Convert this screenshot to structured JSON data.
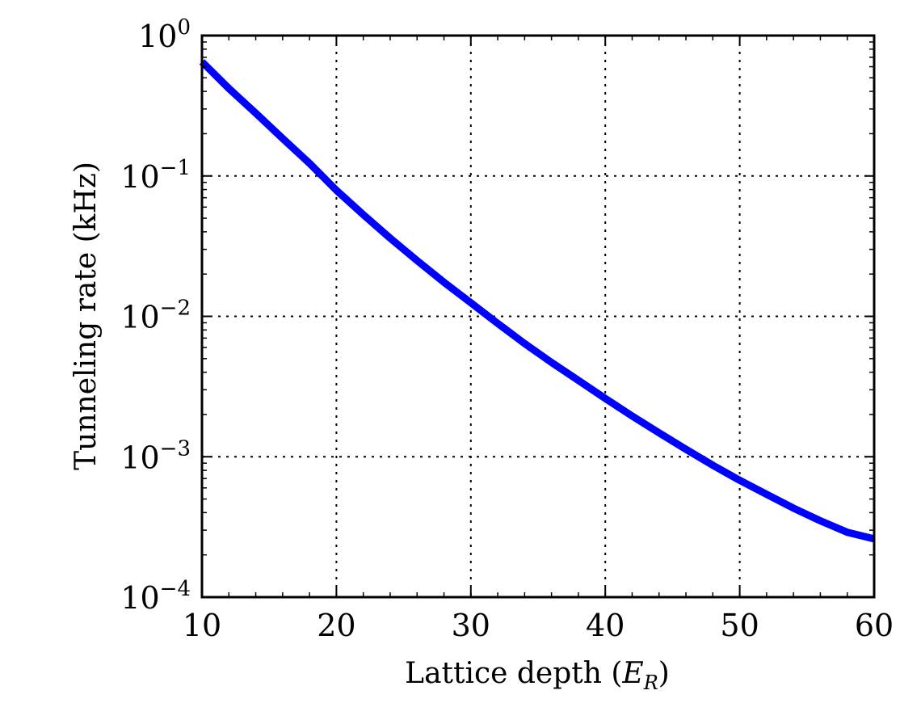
{
  "chart_data": {
    "type": "line",
    "title": "",
    "xlabel": {
      "prefix": "Lattice depth (",
      "symbol": "E",
      "subscript": "R",
      "suffix": ")"
    },
    "ylabel": "Tunneling rate (kHz)",
    "xlim": [
      10,
      60
    ],
    "ylim": [
      0.0001,
      1
    ],
    "yscale": "log",
    "grid": true,
    "x_ticks": [
      10,
      20,
      30,
      40,
      50,
      60
    ],
    "y_ticks": [
      {
        "value": 1,
        "base": "10",
        "exp": "0"
      },
      {
        "value": 0.1,
        "base": "10",
        "exp": "−1"
      },
      {
        "value": 0.01,
        "base": "10",
        "exp": "−2"
      },
      {
        "value": 0.001,
        "base": "10",
        "exp": "−3"
      },
      {
        "value": 0.0001,
        "base": "10",
        "exp": "−4"
      }
    ],
    "series": [
      {
        "color": "#0000ff",
        "x": [
          10,
          12,
          14,
          16,
          18,
          20,
          22,
          24,
          26,
          28,
          30,
          32,
          34,
          36,
          38,
          40,
          42,
          44,
          46,
          48,
          50,
          52,
          54,
          56,
          58,
          60
        ],
        "y": [
          0.65,
          0.42,
          0.28,
          0.185,
          0.123,
          0.079,
          0.053,
          0.036,
          0.025,
          0.0175,
          0.0125,
          0.0089,
          0.0064,
          0.0047,
          0.0035,
          0.0026,
          0.00195,
          0.00148,
          0.00113,
          0.00087,
          0.00068,
          0.00054,
          0.00043,
          0.00035,
          0.00029,
          0.00026
        ]
      }
    ]
  }
}
